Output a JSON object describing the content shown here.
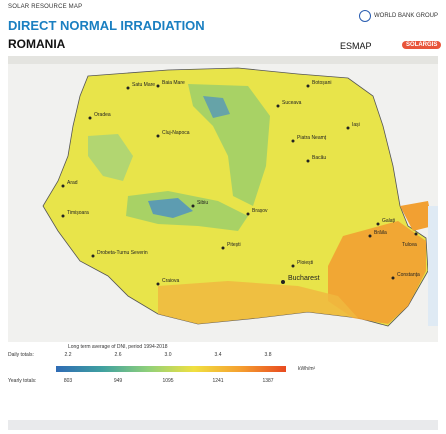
{
  "header": {
    "pretitle": "SOLAR RESOURCE MAP",
    "title": "DIRECT NORMAL IRRADIATION",
    "country": "ROMANIA",
    "org": "WORLD BANK GROUP",
    "esmap": "ESMAP",
    "solargis": "SOLARGIS"
  },
  "map": {
    "cities": [
      "Satu Mare",
      "Baia Mare",
      "Botoșani",
      "Suceava",
      "Oradea",
      "Cluj-Napoca",
      "Piatra Neamț",
      "Iași",
      "Bacău",
      "Arad",
      "Sibiu",
      "Brașov",
      "Timișoara",
      "Galați",
      "Brăila",
      "Tulcea",
      "Pitești",
      "Ploiești",
      "Drobeta-Turnu Severin",
      "Craiova",
      "Bucharest",
      "Constanța"
    ],
    "colors": {
      "yellow": "#e8e44a",
      "green": "#8fd07a",
      "orange": "#f2a032",
      "blue": "#3a86c8"
    }
  },
  "legend": {
    "title": "Long term average of DNI, period 1994-2018",
    "daily_label": "Daily totals:",
    "yearly_label": "Yearly totals:",
    "daily_ticks": [
      "2.2",
      "2.6",
      "3.0",
      "3.4",
      "3.8"
    ],
    "yearly_ticks": [
      "803",
      "949",
      "1095",
      "1241",
      "1387"
    ],
    "unit": "kWh/m²"
  }
}
